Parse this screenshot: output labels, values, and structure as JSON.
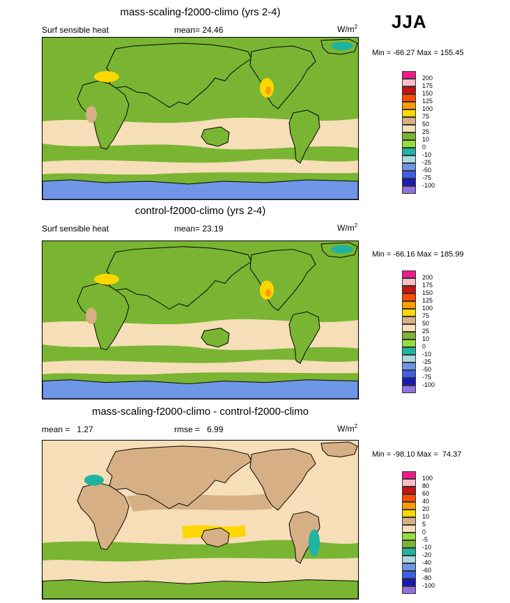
{
  "season": "JJA",
  "palette_main": [
    "#9370db",
    "#1a1ab4",
    "#3f5fe6",
    "#6f96e6",
    "#a8d8e0",
    "#1fb3a0",
    "#96dc3c",
    "#79b532",
    "#f5deb8",
    "#d6b084",
    "#ffd700",
    "#ff9c00",
    "#ff4e00",
    "#c81414",
    "#f8c1c8",
    "#f01c8c"
  ],
  "palette_diff": [
    "#9370db",
    "#1a1ab4",
    "#3f5fe6",
    "#6f96e6",
    "#a8d8e0",
    "#1fb3a0",
    "#79b532",
    "#96dc3c",
    "#f5deb8",
    "#d6b084",
    "#ffd700",
    "#ff9c00",
    "#ff4e00",
    "#c81414",
    "#f8c1c8",
    "#f01c8c"
  ],
  "chart_data": [
    {
      "type": "heatmap",
      "title": "mass-scaling-f2000-climo (yrs 2-4)",
      "left_label": "Surf sensible heat",
      "stat_label": "mean=",
      "stat_value": "24.46",
      "units_base": "W/m",
      "units_sup": "2",
      "minmax": "Min = -66.27 Max = 155.45",
      "levels": [
        "200",
        "175",
        "150",
        "125",
        "100",
        "75",
        "50",
        "25",
        "10",
        "0",
        "-10",
        "-25",
        "-50",
        "-75",
        "-100"
      ],
      "palette": "main"
    },
    {
      "type": "heatmap",
      "title": "control-f2000-climo (yrs 2-4)",
      "left_label": "Surf sensible heat",
      "stat_label": "mean=",
      "stat_value": "23.19",
      "units_base": "W/m",
      "units_sup": "2",
      "minmax": "Min = -66.16 Max = 185.99",
      "levels": [
        "200",
        "175",
        "150",
        "125",
        "100",
        "75",
        "50",
        "25",
        "10",
        "0",
        "-10",
        "-25",
        "-50",
        "-75",
        "-100"
      ],
      "palette": "main"
    },
    {
      "type": "heatmap",
      "title": "mass-scaling-f2000-climo - control-f2000-climo",
      "left_label": "mean =   1.27",
      "stat_label": "rmse =",
      "stat_value": "6.99",
      "units_base": "W/m",
      "units_sup": "2",
      "minmax": "Min = -98.10 Max =  74.37",
      "levels": [
        "100",
        "80",
        "60",
        "40",
        "20",
        "10",
        "5",
        "0",
        "-5",
        "-10",
        "-20",
        "-40",
        "-60",
        "-80",
        "-100"
      ],
      "palette": "diff"
    }
  ]
}
